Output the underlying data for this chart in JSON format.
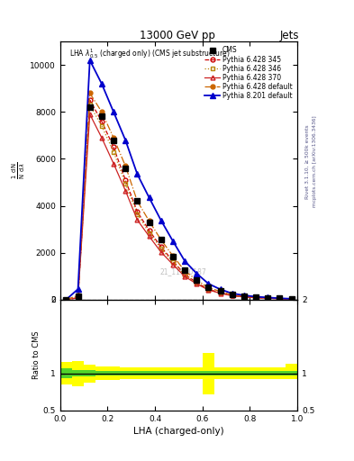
{
  "title": "13000 GeV pp",
  "title_right": "Jets",
  "plot_label": "LHA $\\lambda^{1}_{0.5}$ (charged only) (CMS jet substructure)",
  "xlabel": "LHA (charged-only)",
  "ylabel_ratio": "Ratio to CMS",
  "watermark": "21_11920187",
  "cms_color": "#000000",
  "p6_345_color": "#cc0000",
  "p6_346_color": "#b8860b",
  "p6_370_color": "#cc2222",
  "p6_default_color": "#cc6600",
  "p8_default_color": "#0000cc",
  "xbins": [
    0.0,
    0.05,
    0.1,
    0.15,
    0.2,
    0.25,
    0.3,
    0.35,
    0.4,
    0.45,
    0.5,
    0.55,
    0.6,
    0.65,
    0.7,
    0.75,
    0.8,
    0.85,
    0.9,
    0.95,
    1.0
  ],
  "cms_vals": [
    0,
    150,
    8200,
    7800,
    6800,
    5600,
    4200,
    3300,
    2550,
    1850,
    1250,
    850,
    530,
    360,
    220,
    155,
    105,
    82,
    52,
    32
  ],
  "p6_345_vals": [
    0,
    80,
    8500,
    7600,
    6500,
    5100,
    3750,
    2950,
    2250,
    1650,
    1080,
    730,
    440,
    295,
    178,
    128,
    88,
    68,
    41,
    25
  ],
  "p6_346_vals": [
    0,
    80,
    8300,
    7400,
    6300,
    4950,
    3650,
    2850,
    2180,
    1600,
    1050,
    710,
    430,
    285,
    172,
    122,
    83,
    63,
    38,
    23
  ],
  "p6_370_vals": [
    0,
    80,
    7900,
    6900,
    5800,
    4650,
    3400,
    2700,
    2030,
    1500,
    990,
    675,
    415,
    272,
    165,
    116,
    78,
    58,
    35,
    21
  ],
  "p6_default_vals": [
    0,
    180,
    8800,
    8000,
    6900,
    5700,
    4200,
    3350,
    2550,
    1870,
    1230,
    835,
    510,
    350,
    208,
    150,
    102,
    79,
    50,
    30
  ],
  "p8_default_vals": [
    0,
    450,
    10200,
    9200,
    8000,
    6800,
    5350,
    4350,
    3380,
    2500,
    1650,
    1120,
    680,
    440,
    265,
    185,
    126,
    93,
    59,
    37
  ],
  "ylim_main": [
    0,
    11000
  ],
  "yticks_main": [
    0,
    2000,
    4000,
    6000,
    8000,
    10000
  ],
  "ratio_ylim": [
    0.5,
    2.0
  ],
  "ratio_yticks": [
    0.5,
    1.0,
    1.5,
    2.0
  ],
  "green_band_lo": [
    0.93,
    0.96,
    0.96,
    0.97,
    0.97,
    0.97,
    0.97,
    0.97,
    0.97,
    0.97,
    0.97,
    0.97,
    0.97,
    0.97,
    0.97,
    0.97,
    0.97,
    0.97,
    0.97,
    0.97
  ],
  "green_band_hi": [
    1.07,
    1.04,
    1.04,
    1.03,
    1.03,
    1.03,
    1.03,
    1.03,
    1.03,
    1.03,
    1.03,
    1.03,
    1.03,
    1.03,
    1.03,
    1.03,
    1.03,
    1.03,
    1.03,
    1.03
  ],
  "yellow_band_lo": [
    0.85,
    0.83,
    0.88,
    0.91,
    0.91,
    0.92,
    0.92,
    0.92,
    0.92,
    0.92,
    0.92,
    0.92,
    0.72,
    0.92,
    0.92,
    0.92,
    0.92,
    0.92,
    0.92,
    0.92
  ],
  "yellow_band_hi": [
    1.15,
    1.17,
    1.12,
    1.09,
    1.09,
    1.08,
    1.08,
    1.08,
    1.08,
    1.08,
    1.08,
    1.08,
    1.28,
    1.08,
    1.08,
    1.08,
    1.08,
    1.08,
    1.08,
    1.13
  ]
}
